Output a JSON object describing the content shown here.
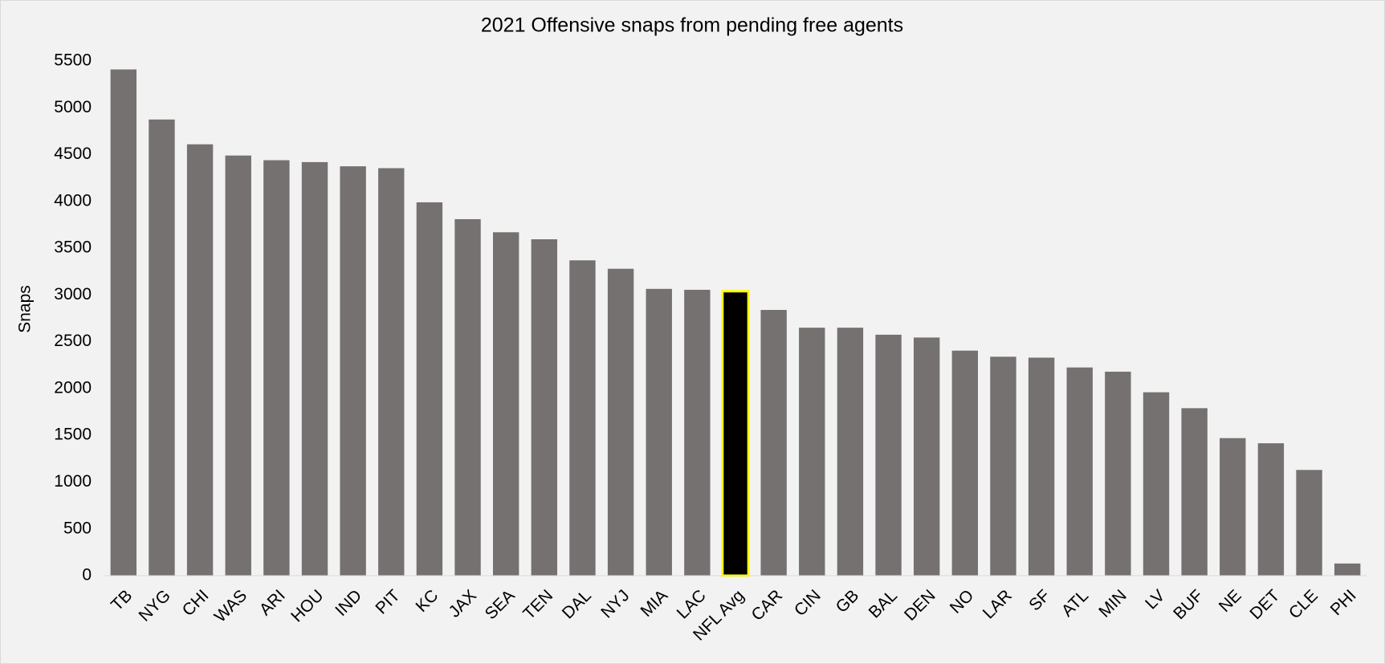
{
  "chart_data": {
    "type": "bar",
    "title": "2021 Offensive snaps from pending free agents",
    "y_label": "Snaps",
    "categories": [
      "TB",
      "NYG",
      "CHI",
      "WAS",
      "ARI",
      "HOU",
      "IND",
      "PIT",
      "KC",
      "JAX",
      "SEA",
      "TEN",
      "DAL",
      "NYJ",
      "MIA",
      "LAC",
      "NFL Avg",
      "CAR",
      "CIN",
      "GB",
      "BAL",
      "DEN",
      "NO",
      "LAR",
      "SF",
      "ATL",
      "MIN",
      "LV",
      "BUF",
      "NE",
      "DET",
      "CLE",
      "PHI"
    ],
    "values": [
      5410,
      4875,
      4610,
      4490,
      4440,
      4420,
      4375,
      4355,
      3990,
      3810,
      3670,
      3595,
      3370,
      3280,
      3065,
      3055,
      3040,
      2840,
      2650,
      2650,
      2575,
      2545,
      2405,
      2340,
      2330,
      2225,
      2180,
      1960,
      1790,
      1470,
      1415,
      1130,
      130
    ],
    "colors": [
      "#757170",
      "#757170",
      "#757170",
      "#757170",
      "#757170",
      "#757170",
      "#757170",
      "#757170",
      "#757170",
      "#757170",
      "#757170",
      "#757170",
      "#757170",
      "#757170",
      "#757170",
      "#757170",
      "#000000",
      "#757170",
      "#757170",
      "#757170",
      "#757170",
      "#757170",
      "#757170",
      "#757170",
      "#757170",
      "#757170",
      "#757170",
      "#757170",
      "#757170",
      "#757170",
      "#757170",
      "#757170",
      "#757170"
    ],
    "edgecolors": [
      "none",
      "none",
      "none",
      "none",
      "none",
      "none",
      "none",
      "none",
      "none",
      "none",
      "none",
      "none",
      "none",
      "none",
      "none",
      "none",
      "#ffff00",
      "none",
      "none",
      "none",
      "none",
      "none",
      "none",
      "none",
      "none",
      "none",
      "none",
      "none",
      "none",
      "none",
      "none",
      "none",
      "none"
    ],
    "ylim": [
      0,
      5500
    ],
    "yticks": [
      0,
      500,
      1000,
      1500,
      2000,
      2500,
      3000,
      3500,
      4000,
      4500,
      5000,
      5500
    ],
    "grid": false
  }
}
